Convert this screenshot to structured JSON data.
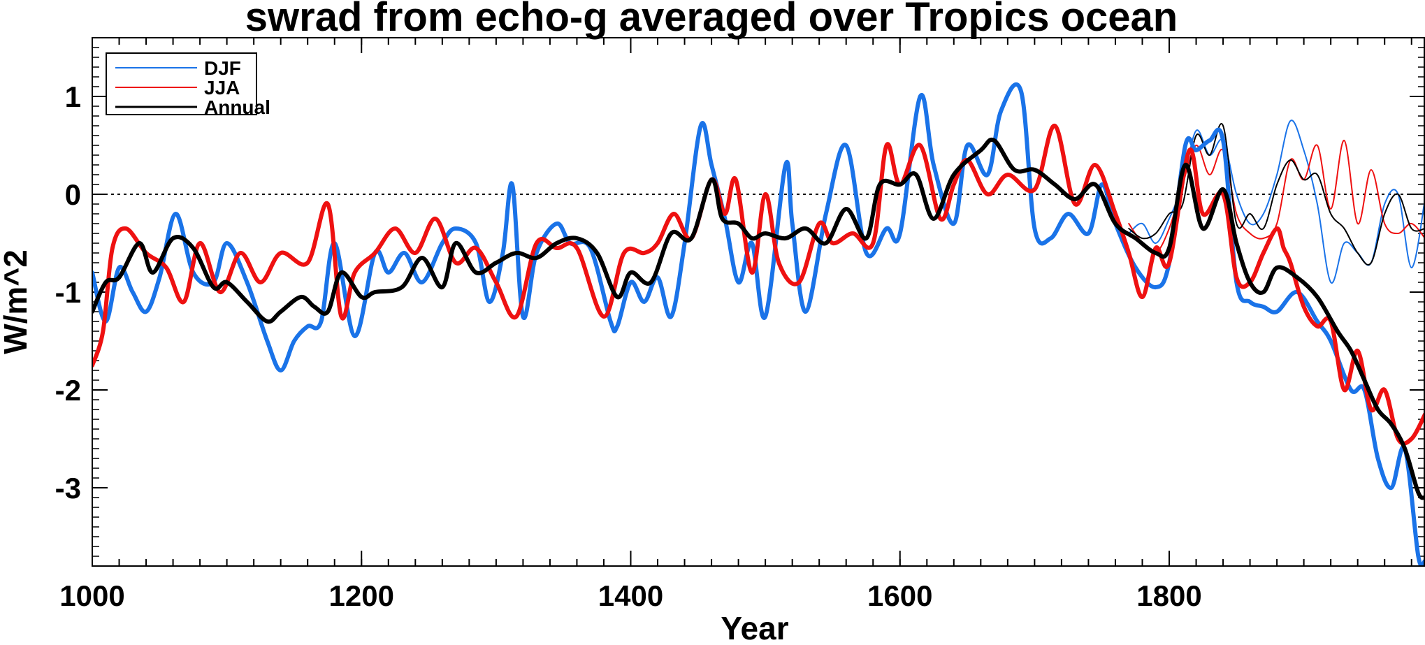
{
  "chart_data": {
    "type": "line",
    "title": "swrad from echo-g averaged over Tropics ocean",
    "xlabel": "Year",
    "ylabel": "W/m^2",
    "xlim": [
      1000,
      1990
    ],
    "ylim": [
      -3.8,
      1.6
    ],
    "x_ticks": [
      1000,
      1200,
      1400,
      1600,
      1800
    ],
    "x_tick_labels": [
      "1000",
      "1200",
      "1400",
      "1600",
      "1800"
    ],
    "y_ticks": [
      1,
      0,
      -1,
      -2,
      -3
    ],
    "y_tick_labels": [
      "1",
      "0",
      "-1",
      "-2",
      "-3"
    ],
    "reference_line": {
      "y": 0,
      "style": "dotted"
    },
    "legend": {
      "position": "top-left",
      "entries": [
        "DJF",
        "JJA",
        "Annual"
      ]
    },
    "series": [
      {
        "name": "DJF",
        "color": "#1a73e8",
        "style": "thick",
        "x": [
          1000,
          1010,
          1020,
          1030,
          1040,
          1050,
          1062,
          1075,
          1090,
          1100,
          1115,
          1130,
          1140,
          1150,
          1160,
          1170,
          1180,
          1195,
          1210,
          1220,
          1232,
          1245,
          1260,
          1270,
          1285,
          1295,
          1305,
          1312,
          1320,
          1330,
          1345,
          1355,
          1370,
          1385,
          1390,
          1400,
          1410,
          1420,
          1430,
          1440,
          1452,
          1460,
          1470,
          1480,
          1490,
          1500,
          1515,
          1520,
          1530,
          1545,
          1560,
          1575,
          1590,
          1600,
          1615,
          1625,
          1640,
          1650,
          1665,
          1675,
          1690,
          1700,
          1712,
          1725,
          1740,
          1750,
          1760,
          1775,
          1790,
          1800,
          1812,
          1820,
          1830,
          1840,
          1850,
          1860,
          1870,
          1880,
          1895,
          1910,
          1920,
          1935,
          1945,
          1955,
          1965,
          1975,
          1985,
          1990
        ],
        "values": [
          -0.8,
          -1.3,
          -0.75,
          -1.0,
          -1.2,
          -0.85,
          -0.2,
          -0.8,
          -0.9,
          -0.5,
          -0.9,
          -1.5,
          -1.8,
          -1.5,
          -1.35,
          -1.3,
          -0.5,
          -1.45,
          -0.6,
          -0.8,
          -0.6,
          -0.9,
          -0.5,
          -0.35,
          -0.5,
          -1.1,
          -0.6,
          0.1,
          -1.25,
          -0.6,
          -0.3,
          -0.5,
          -0.55,
          -1.3,
          -1.35,
          -0.9,
          -1.1,
          -0.85,
          -1.25,
          -0.5,
          0.7,
          0.3,
          -0.25,
          -0.9,
          -0.5,
          -1.25,
          0.3,
          -0.3,
          -1.2,
          -0.2,
          0.5,
          -0.6,
          -0.35,
          -0.4,
          1.0,
          0.3,
          -0.3,
          0.5,
          0.2,
          0.85,
          1.05,
          -0.35,
          -0.45,
          -0.2,
          -0.4,
          0.1,
          -0.3,
          -0.75,
          -0.95,
          -0.7,
          0.5,
          0.45,
          0.55,
          0.55,
          -0.9,
          -1.1,
          -1.15,
          -1.2,
          -1.0,
          -1.3,
          -1.5,
          -2.0,
          -2.0,
          -2.7,
          -3.0,
          -2.6,
          -3.7,
          -3.75
        ]
      },
      {
        "name": "JJA",
        "color": "#ee1111",
        "style": "thick",
        "x": [
          1000,
          1008,
          1015,
          1025,
          1040,
          1055,
          1068,
          1080,
          1095,
          1110,
          1125,
          1140,
          1160,
          1175,
          1185,
          1195,
          1210,
          1225,
          1240,
          1255,
          1270,
          1285,
          1300,
          1315,
          1330,
          1345,
          1360,
          1380,
          1395,
          1410,
          1420,
          1432,
          1445,
          1460,
          1470,
          1478,
          1490,
          1500,
          1510,
          1525,
          1540,
          1550,
          1565,
          1580,
          1590,
          1600,
          1615,
          1630,
          1640,
          1650,
          1665,
          1680,
          1700,
          1715,
          1730,
          1745,
          1760,
          1770,
          1780,
          1790,
          1800,
          1815,
          1825,
          1840,
          1850,
          1860,
          1870,
          1880,
          1885,
          1890,
          1900,
          1910,
          1920,
          1930,
          1940,
          1950,
          1960,
          1970,
          1980,
          1990
        ],
        "values": [
          -1.75,
          -1.4,
          -0.55,
          -0.35,
          -0.6,
          -0.75,
          -1.1,
          -0.5,
          -1.0,
          -0.6,
          -0.9,
          -0.6,
          -0.7,
          -0.1,
          -1.25,
          -0.8,
          -0.6,
          -0.35,
          -0.6,
          -0.25,
          -0.7,
          -0.55,
          -0.9,
          -1.25,
          -0.5,
          -0.55,
          -0.55,
          -1.25,
          -0.6,
          -0.6,
          -0.5,
          -0.2,
          -0.45,
          0.15,
          -0.2,
          0.15,
          -0.8,
          0.0,
          -0.7,
          -0.9,
          -0.3,
          -0.5,
          -0.4,
          -0.5,
          0.5,
          0.1,
          0.5,
          -0.25,
          0.1,
          0.35,
          0.0,
          0.2,
          0.05,
          0.7,
          -0.1,
          0.3,
          -0.2,
          -0.6,
          -1.05,
          -0.55,
          -0.7,
          0.45,
          -0.2,
          0.0,
          -0.85,
          -0.9,
          -0.6,
          -0.35,
          -0.55,
          -0.7,
          -1.15,
          -1.35,
          -1.3,
          -2.0,
          -1.6,
          -2.2,
          -2.0,
          -2.5,
          -2.5,
          -2.25
        ]
      },
      {
        "name": "Annual",
        "color": "#000000",
        "style": "thick",
        "x": [
          1000,
          1010,
          1020,
          1035,
          1045,
          1060,
          1075,
          1090,
          1100,
          1115,
          1130,
          1140,
          1155,
          1165,
          1175,
          1185,
          1200,
          1210,
          1230,
          1245,
          1260,
          1270,
          1285,
          1300,
          1315,
          1330,
          1345,
          1360,
          1375,
          1390,
          1400,
          1415,
          1430,
          1445,
          1460,
          1468,
          1480,
          1490,
          1500,
          1515,
          1530,
          1545,
          1560,
          1575,
          1585,
          1600,
          1612,
          1625,
          1640,
          1660,
          1670,
          1685,
          1700,
          1715,
          1730,
          1745,
          1760,
          1775,
          1790,
          1800,
          1812,
          1825,
          1840,
          1850,
          1860,
          1870,
          1880,
          1895,
          1910,
          1925,
          1935,
          1945,
          1955,
          1965,
          1975,
          1985,
          1990
        ],
        "values": [
          -1.2,
          -0.9,
          -0.85,
          -0.5,
          -0.8,
          -0.45,
          -0.55,
          -0.95,
          -0.9,
          -1.1,
          -1.3,
          -1.2,
          -1.05,
          -1.15,
          -1.2,
          -0.8,
          -1.05,
          -1.0,
          -0.95,
          -0.65,
          -0.95,
          -0.5,
          -0.8,
          -0.7,
          -0.6,
          -0.65,
          -0.5,
          -0.45,
          -0.6,
          -1.05,
          -0.8,
          -0.9,
          -0.4,
          -0.45,
          0.15,
          -0.25,
          -0.3,
          -0.45,
          -0.4,
          -0.45,
          -0.35,
          -0.5,
          -0.15,
          -0.45,
          0.1,
          0.1,
          0.2,
          -0.25,
          0.2,
          0.45,
          0.55,
          0.25,
          0.25,
          0.1,
          -0.05,
          0.1,
          -0.3,
          -0.45,
          -0.6,
          -0.55,
          0.3,
          -0.35,
          0.05,
          -0.5,
          -0.9,
          -1.0,
          -0.75,
          -0.85,
          -1.05,
          -1.4,
          -1.6,
          -1.9,
          -2.2,
          -2.35,
          -2.6,
          -3.05,
          -3.1
        ]
      },
      {
        "name": "DJF (thin)",
        "color": "#1a73e8",
        "style": "thin",
        "x": [
          1770,
          1780,
          1790,
          1800,
          1810,
          1820,
          1830,
          1840,
          1850,
          1860,
          1870,
          1880,
          1890,
          1900,
          1910,
          1920,
          1930,
          1940,
          1950,
          1960,
          1970,
          1980,
          1990
        ],
        "values": [
          -0.4,
          -0.3,
          -0.5,
          -0.25,
          0.1,
          0.65,
          0.4,
          0.55,
          0.0,
          -0.3,
          -0.2,
          0.2,
          0.75,
          0.45,
          -0.1,
          -0.9,
          -0.5,
          -0.6,
          -0.7,
          -0.1,
          0.0,
          -0.75,
          -0.05
        ]
      },
      {
        "name": "JJA (thin)",
        "color": "#ee1111",
        "style": "thin",
        "x": [
          1770,
          1780,
          1790,
          1800,
          1810,
          1820,
          1830,
          1840,
          1850,
          1860,
          1870,
          1880,
          1890,
          1900,
          1910,
          1920,
          1930,
          1940,
          1950,
          1960,
          1970,
          1980,
          1990
        ],
        "values": [
          -0.3,
          -0.5,
          -0.6,
          -0.35,
          0.1,
          0.5,
          0.2,
          0.45,
          -0.2,
          -0.4,
          -0.45,
          -0.3,
          0.35,
          0.15,
          0.5,
          -0.15,
          0.55,
          -0.3,
          0.25,
          -0.3,
          -0.4,
          -0.3,
          -0.45
        ]
      },
      {
        "name": "Annual (thin)",
        "color": "#000000",
        "style": "thin",
        "x": [
          1770,
          1780,
          1790,
          1800,
          1810,
          1820,
          1830,
          1840,
          1850,
          1860,
          1870,
          1880,
          1890,
          1900,
          1910,
          1920,
          1930,
          1940,
          1950,
          1960,
          1970,
          1980,
          1990
        ],
        "values": [
          -0.35,
          -0.45,
          -0.4,
          -0.2,
          -0.1,
          0.6,
          0.4,
          0.7,
          -0.3,
          -0.2,
          -0.35,
          0.1,
          0.35,
          0.15,
          0.2,
          -0.2,
          -0.35,
          -0.6,
          -0.7,
          -0.2,
          0.0,
          -0.35,
          -0.35
        ]
      }
    ]
  }
}
